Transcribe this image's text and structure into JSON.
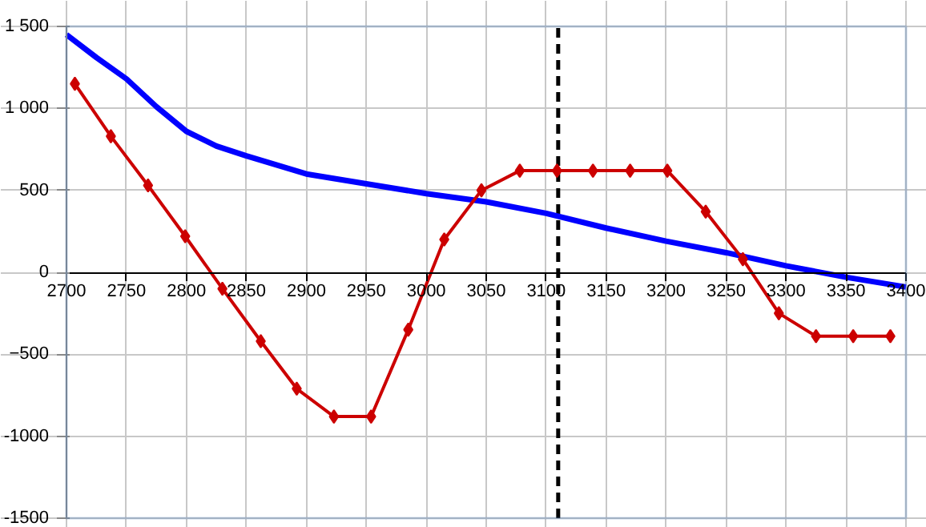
{
  "chart_data": {
    "type": "line",
    "xlim": [
      2700,
      3400
    ],
    "xticks": [
      2700,
      2750,
      2800,
      2850,
      2900,
      2950,
      3000,
      3050,
      3100,
      3150,
      3200,
      3250,
      3300,
      3350,
      3400
    ],
    "ylim": [
      -1500,
      1500
    ],
    "yticks": [
      {
        "value": 1500,
        "label": "1 500"
      },
      {
        "value": 1000,
        "label": "1 000"
      },
      500,
      0,
      -500,
      {
        "value": -1000,
        "label": "-1000"
      },
      {
        "value": -1500,
        "label": "-1500"
      }
    ],
    "grid": true,
    "series": [
      {
        "color": "#0000ff",
        "marker": "none",
        "x": [
          2700,
          2725,
          2750,
          2775,
          2800,
          2825,
          2850,
          2900,
          2950,
          3000,
          3050,
          3100,
          3150,
          3200,
          3250,
          3300,
          3350,
          3400
        ],
        "values": [
          1450,
          1310,
          1180,
          1010,
          860,
          770,
          710,
          600,
          540,
          480,
          430,
          360,
          270,
          190,
          120,
          40,
          -30,
          -90
        ]
      },
      {
        "color": "#cc0000",
        "marker": "diamond",
        "x": [
          2707,
          2737,
          2768,
          2799,
          2830,
          2862,
          2892,
          2923,
          2954,
          2985,
          3015,
          3046,
          3078,
          3109,
          3139,
          3170,
          3201,
          3233,
          3264,
          3294,
          3325,
          3356,
          3387
        ],
        "values": [
          1150,
          830,
          530,
          220,
          -100,
          -420,
          -710,
          -880,
          -880,
          -350,
          200,
          500,
          620,
          620,
          620,
          620,
          620,
          370,
          80,
          -250,
          -390,
          -390,
          -390
        ]
      }
    ],
    "ref_lines": [
      {
        "axis": "x",
        "value": 3110,
        "label": null,
        "color": "#000000",
        "line_style": "dashed"
      }
    ]
  }
}
